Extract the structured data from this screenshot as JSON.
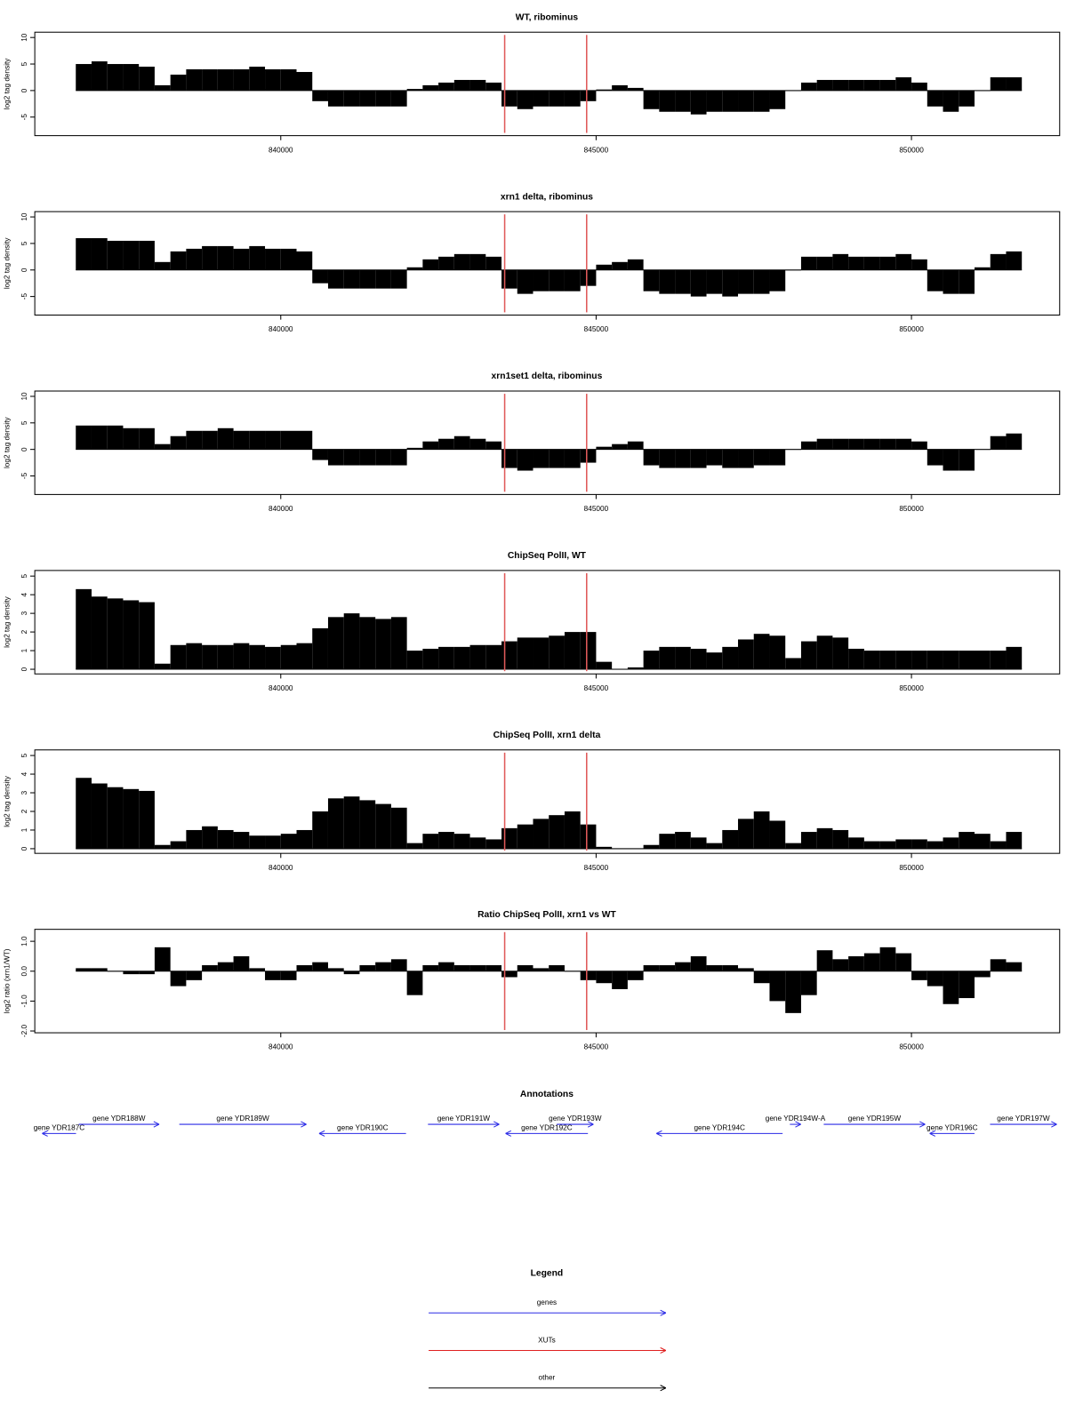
{
  "chart_data": [
    {
      "type": "bar",
      "title": "WT, ribominus",
      "ylabel": "log2 tag density",
      "x": [
        836750,
        837000,
        837250,
        837500,
        837750,
        838000,
        838250,
        838500,
        838750,
        839000,
        839250,
        839500,
        839750,
        840000,
        840250,
        840500,
        840750,
        841000,
        841250,
        841500,
        841750,
        842000,
        842250,
        842500,
        842750,
        843000,
        843250,
        843500,
        843750,
        844000,
        844250,
        844500,
        844750,
        845000,
        845250,
        845500,
        845750,
        846000,
        846250,
        846500,
        846750,
        847000,
        847250,
        847500,
        847750,
        848000,
        848250,
        848500,
        848750,
        849000,
        849250,
        849500,
        849750,
        850000,
        850250,
        850500,
        850750,
        851000,
        851250,
        851500
      ],
      "values": [
        5,
        5.5,
        5,
        5,
        4.5,
        1,
        3,
        4,
        4,
        4,
        4,
        4.5,
        4,
        4,
        3.5,
        -2,
        -3,
        -3,
        -3,
        -3,
        -3,
        0.3,
        1,
        1.5,
        2,
        2,
        1.5,
        -3,
        -3.5,
        -3,
        -3,
        -3,
        -2,
        0.2,
        1,
        0.5,
        -3.5,
        -4,
        -4,
        -4.5,
        -4,
        -4,
        -4,
        -4,
        -3.5,
        0,
        1.5,
        2,
        2,
        2,
        2,
        2,
        2.5,
        1.5,
        -3,
        -4,
        -3,
        0,
        2.5,
        2.5
      ],
      "color": "#000000",
      "xlim": [
        836100,
        852350
      ],
      "xticks": [
        840000,
        845000,
        850000
      ],
      "ylim": [
        -8.5,
        11
      ],
      "yticks": [
        -5,
        0,
        5,
        10
      ],
      "vlines": [
        843550,
        844850
      ],
      "vline_color": "#e05a5a"
    },
    {
      "type": "bar",
      "title": "xrn1 delta, ribominus",
      "ylabel": "log2 tag density",
      "x": [
        836750,
        837000,
        837250,
        837500,
        837750,
        838000,
        838250,
        838500,
        838750,
        839000,
        839250,
        839500,
        839750,
        840000,
        840250,
        840500,
        840750,
        841000,
        841250,
        841500,
        841750,
        842000,
        842250,
        842500,
        842750,
        843000,
        843250,
        843500,
        843750,
        844000,
        844250,
        844500,
        844750,
        845000,
        845250,
        845500,
        845750,
        846000,
        846250,
        846500,
        846750,
        847000,
        847250,
        847500,
        847750,
        848000,
        848250,
        848500,
        848750,
        849000,
        849250,
        849500,
        849750,
        850000,
        850250,
        850500,
        850750,
        851000,
        851250,
        851500
      ],
      "values": [
        6,
        6,
        5.5,
        5.5,
        5.5,
        1.5,
        3.5,
        4,
        4.5,
        4.5,
        4,
        4.5,
        4,
        4,
        3.5,
        -2.5,
        -3.5,
        -3.5,
        -3.5,
        -3.5,
        -3.5,
        0.5,
        2,
        2.5,
        3,
        3,
        2.5,
        -3.5,
        -4.5,
        -4,
        -4,
        -4,
        -3,
        1,
        1.5,
        2,
        -4,
        -4.5,
        -4.5,
        -5,
        -4.5,
        -5,
        -4.5,
        -4.5,
        -4,
        0,
        2.5,
        2.5,
        3,
        2.5,
        2.5,
        2.5,
        3,
        2,
        -4,
        -4.5,
        -4.5,
        0.5,
        3,
        3.5
      ],
      "color": "#000000",
      "xlim": [
        836100,
        852350
      ],
      "xticks": [
        840000,
        845000,
        850000
      ],
      "ylim": [
        -8.5,
        11
      ],
      "yticks": [
        -5,
        0,
        5,
        10
      ],
      "vlines": [
        843550,
        844850
      ],
      "vline_color": "#e05a5a"
    },
    {
      "type": "bar",
      "title": "xrn1set1 delta, ribominus",
      "ylabel": "log2 tag density",
      "x": [
        836750,
        837000,
        837250,
        837500,
        837750,
        838000,
        838250,
        838500,
        838750,
        839000,
        839250,
        839500,
        839750,
        840000,
        840250,
        840500,
        840750,
        841000,
        841250,
        841500,
        841750,
        842000,
        842250,
        842500,
        842750,
        843000,
        843250,
        843500,
        843750,
        844000,
        844250,
        844500,
        844750,
        845000,
        845250,
        845500,
        845750,
        846000,
        846250,
        846500,
        846750,
        847000,
        847250,
        847500,
        847750,
        848000,
        848250,
        848500,
        848750,
        849000,
        849250,
        849500,
        849750,
        850000,
        850250,
        850500,
        850750,
        851000,
        851250,
        851500
      ],
      "values": [
        4.5,
        4.5,
        4.5,
        4,
        4,
        1,
        2.5,
        3.5,
        3.5,
        4,
        3.5,
        3.5,
        3.5,
        3.5,
        3.5,
        -2,
        -3,
        -3,
        -3,
        -3,
        -3,
        0.3,
        1.5,
        2,
        2.5,
        2,
        1.5,
        -3.5,
        -4,
        -3.5,
        -3.5,
        -3.5,
        -2.5,
        0.5,
        1,
        1.5,
        -3,
        -3.5,
        -3.5,
        -3.5,
        -3,
        -3.5,
        -3.5,
        -3,
        -3,
        0,
        1.5,
        2,
        2,
        2,
        2,
        2,
        2,
        1.5,
        -3,
        -4,
        -4,
        0,
        2.5,
        3
      ],
      "color": "#000000",
      "xlim": [
        836100,
        852350
      ],
      "xticks": [
        840000,
        845000,
        850000
      ],
      "ylim": [
        -8.5,
        11
      ],
      "yticks": [
        -5,
        0,
        5,
        10
      ],
      "vlines": [
        843550,
        844850
      ],
      "vline_color": "#e05a5a"
    },
    {
      "type": "bar",
      "title": "ChipSeq PolII, WT",
      "ylabel": "log2 tag density",
      "x": [
        836750,
        837000,
        837250,
        837500,
        837750,
        838000,
        838250,
        838500,
        838750,
        839000,
        839250,
        839500,
        839750,
        840000,
        840250,
        840500,
        840750,
        841000,
        841250,
        841500,
        841750,
        842000,
        842250,
        842500,
        842750,
        843000,
        843250,
        843500,
        843750,
        844000,
        844250,
        844500,
        844750,
        845000,
        845250,
        845500,
        845750,
        846000,
        846250,
        846500,
        846750,
        847000,
        847250,
        847500,
        847750,
        848000,
        848250,
        848500,
        848750,
        849000,
        849250,
        849500,
        849750,
        850000,
        850250,
        850500,
        850750,
        851000,
        851250,
        851500
      ],
      "values": [
        4.3,
        3.9,
        3.8,
        3.7,
        3.6,
        0.3,
        1.3,
        1.4,
        1.3,
        1.3,
        1.4,
        1.3,
        1.2,
        1.3,
        1.4,
        2.2,
        2.8,
        3,
        2.8,
        2.7,
        2.8,
        1,
        1.1,
        1.2,
        1.2,
        1.3,
        1.3,
        1.5,
        1.7,
        1.7,
        1.8,
        2,
        2,
        0.4,
        0,
        0.1,
        1,
        1.2,
        1.2,
        1.1,
        0.9,
        1.2,
        1.6,
        1.9,
        1.8,
        0.6,
        1.5,
        1.8,
        1.7,
        1.1,
        1,
        1,
        1,
        1,
        1,
        1,
        1,
        1,
        1,
        1.2
      ],
      "color": "#000000",
      "xlim": [
        836100,
        852350
      ],
      "xticks": [
        840000,
        845000,
        850000
      ],
      "ylim": [
        -0.25,
        5.3
      ],
      "yticks": [
        0,
        1,
        2,
        3,
        4,
        5
      ],
      "vlines": [
        843550,
        844850
      ],
      "vline_color": "#e05a5a"
    },
    {
      "type": "bar",
      "title": "ChipSeq PolII, xrn1 delta",
      "ylabel": "log2 tag density",
      "x": [
        836750,
        837000,
        837250,
        837500,
        837750,
        838000,
        838250,
        838500,
        838750,
        839000,
        839250,
        839500,
        839750,
        840000,
        840250,
        840500,
        840750,
        841000,
        841250,
        841500,
        841750,
        842000,
        842250,
        842500,
        842750,
        843000,
        843250,
        843500,
        843750,
        844000,
        844250,
        844500,
        844750,
        845000,
        845250,
        845500,
        845750,
        846000,
        846250,
        846500,
        846750,
        847000,
        847250,
        847500,
        847750,
        848000,
        848250,
        848500,
        848750,
        849000,
        849250,
        849500,
        849750,
        850000,
        850250,
        850500,
        850750,
        851000,
        851250,
        851500
      ],
      "values": [
        3.8,
        3.5,
        3.3,
        3.2,
        3.1,
        0.2,
        0.4,
        1,
        1.2,
        1,
        0.9,
        0.7,
        0.7,
        0.8,
        1,
        2,
        2.7,
        2.8,
        2.6,
        2.4,
        2.2,
        0.3,
        0.8,
        0.9,
        0.8,
        0.6,
        0.5,
        1.1,
        1.3,
        1.6,
        1.8,
        2,
        1.3,
        0.1,
        0,
        0,
        0.2,
        0.8,
        0.9,
        0.6,
        0.3,
        1,
        1.6,
        2,
        1.5,
        0.3,
        0.9,
        1.1,
        1,
        0.6,
        0.4,
        0.4,
        0.5,
        0.5,
        0.4,
        0.6,
        0.9,
        0.8,
        0.4,
        0.9
      ],
      "color": "#000000",
      "xlim": [
        836100,
        852350
      ],
      "xticks": [
        840000,
        845000,
        850000
      ],
      "ylim": [
        -0.25,
        5.3
      ],
      "yticks": [
        0,
        1,
        2,
        3,
        4,
        5
      ],
      "vlines": [
        843550,
        844850
      ],
      "vline_color": "#e05a5a"
    },
    {
      "type": "bar",
      "title": "Ratio ChipSeq PolII, xrn1 vs WT",
      "ylabel": "log2 ratio (xrn1/WT)",
      "x": [
        836750,
        837000,
        837250,
        837500,
        837750,
        838000,
        838250,
        838500,
        838750,
        839000,
        839250,
        839500,
        839750,
        840000,
        840250,
        840500,
        840750,
        841000,
        841250,
        841500,
        841750,
        842000,
        842250,
        842500,
        842750,
        843000,
        843250,
        843500,
        843750,
        844000,
        844250,
        844500,
        844750,
        845000,
        845250,
        845500,
        845750,
        846000,
        846250,
        846500,
        846750,
        847000,
        847250,
        847500,
        847750,
        848000,
        848250,
        848500,
        848750,
        849000,
        849250,
        849500,
        849750,
        850000,
        850250,
        850500,
        850750,
        851000,
        851250,
        851500
      ],
      "values": [
        0.1,
        0.1,
        0,
        -0.1,
        -0.1,
        0.8,
        -0.5,
        -0.3,
        0.2,
        0.3,
        0.5,
        0.1,
        -0.3,
        -0.3,
        0.2,
        0.3,
        0.1,
        -0.1,
        0.2,
        0.3,
        0.4,
        -0.8,
        0.2,
        0.3,
        0.2,
        0.2,
        0.2,
        -0.2,
        0.2,
        0.1,
        0.2,
        0,
        -0.3,
        -0.4,
        -0.6,
        -0.3,
        0.2,
        0.2,
        0.3,
        0.5,
        0.2,
        0.2,
        0.1,
        -0.4,
        -1,
        -1.4,
        -0.8,
        0.7,
        0.4,
        0.5,
        0.6,
        0.8,
        0.6,
        -0.3,
        -0.5,
        -1.1,
        -0.9,
        -0.2,
        0.4,
        0.3
      ],
      "color": "#000000",
      "xlim": [
        836100,
        852350
      ],
      "xticks": [
        840000,
        845000,
        850000
      ],
      "ylim": [
        -2.06,
        1.4
      ],
      "yticks": [
        {
          "value": -2,
          "label": "-2.0"
        },
        {
          "value": -1,
          "label": "-1.0"
        },
        {
          "value": 0,
          "label": "0.0"
        },
        {
          "value": 1,
          "label": "1.0"
        }
      ],
      "vlines": [
        843550,
        844850
      ],
      "vline_color": "#e05a5a"
    }
  ],
  "annotations": {
    "title": "Annotations",
    "color": "#2a2ae6",
    "xlim": [
      836100,
      852350
    ],
    "genes": [
      {
        "label": "gene YDR187C",
        "start": 836754,
        "end": 836217
      },
      {
        "label": "gene YDR188W",
        "start": 836797,
        "end": 838072
      },
      {
        "label": "gene YDR189W",
        "start": 838391,
        "end": 840406
      },
      {
        "label": "gene YDR190C",
        "start": 841986,
        "end": 840609
      },
      {
        "label": "gene YDR191W",
        "start": 842334,
        "end": 843464
      },
      {
        "label": "gene YDR192C",
        "start": 844870,
        "end": 843565
      },
      {
        "label": "gene YDR193W",
        "start": 844377,
        "end": 844957
      },
      {
        "label": "gene YDR194C",
        "start": 847957,
        "end": 845957
      },
      {
        "label": "gene YDR194W-A",
        "start": 848072,
        "end": 848246
      },
      {
        "label": "gene YDR195W",
        "start": 848609,
        "end": 850217
      },
      {
        "label": "gene YDR196C",
        "start": 851000,
        "end": 850290
      },
      {
        "label": "gene YDR197W",
        "start": 851246,
        "end": 852304
      }
    ]
  },
  "legend": {
    "title": "Legend",
    "items": [
      {
        "label": "genes",
        "color": "#2a2ae6"
      },
      {
        "label": "XUTs",
        "color": "#e02020"
      },
      {
        "label": "other",
        "color": "#000000"
      }
    ]
  }
}
